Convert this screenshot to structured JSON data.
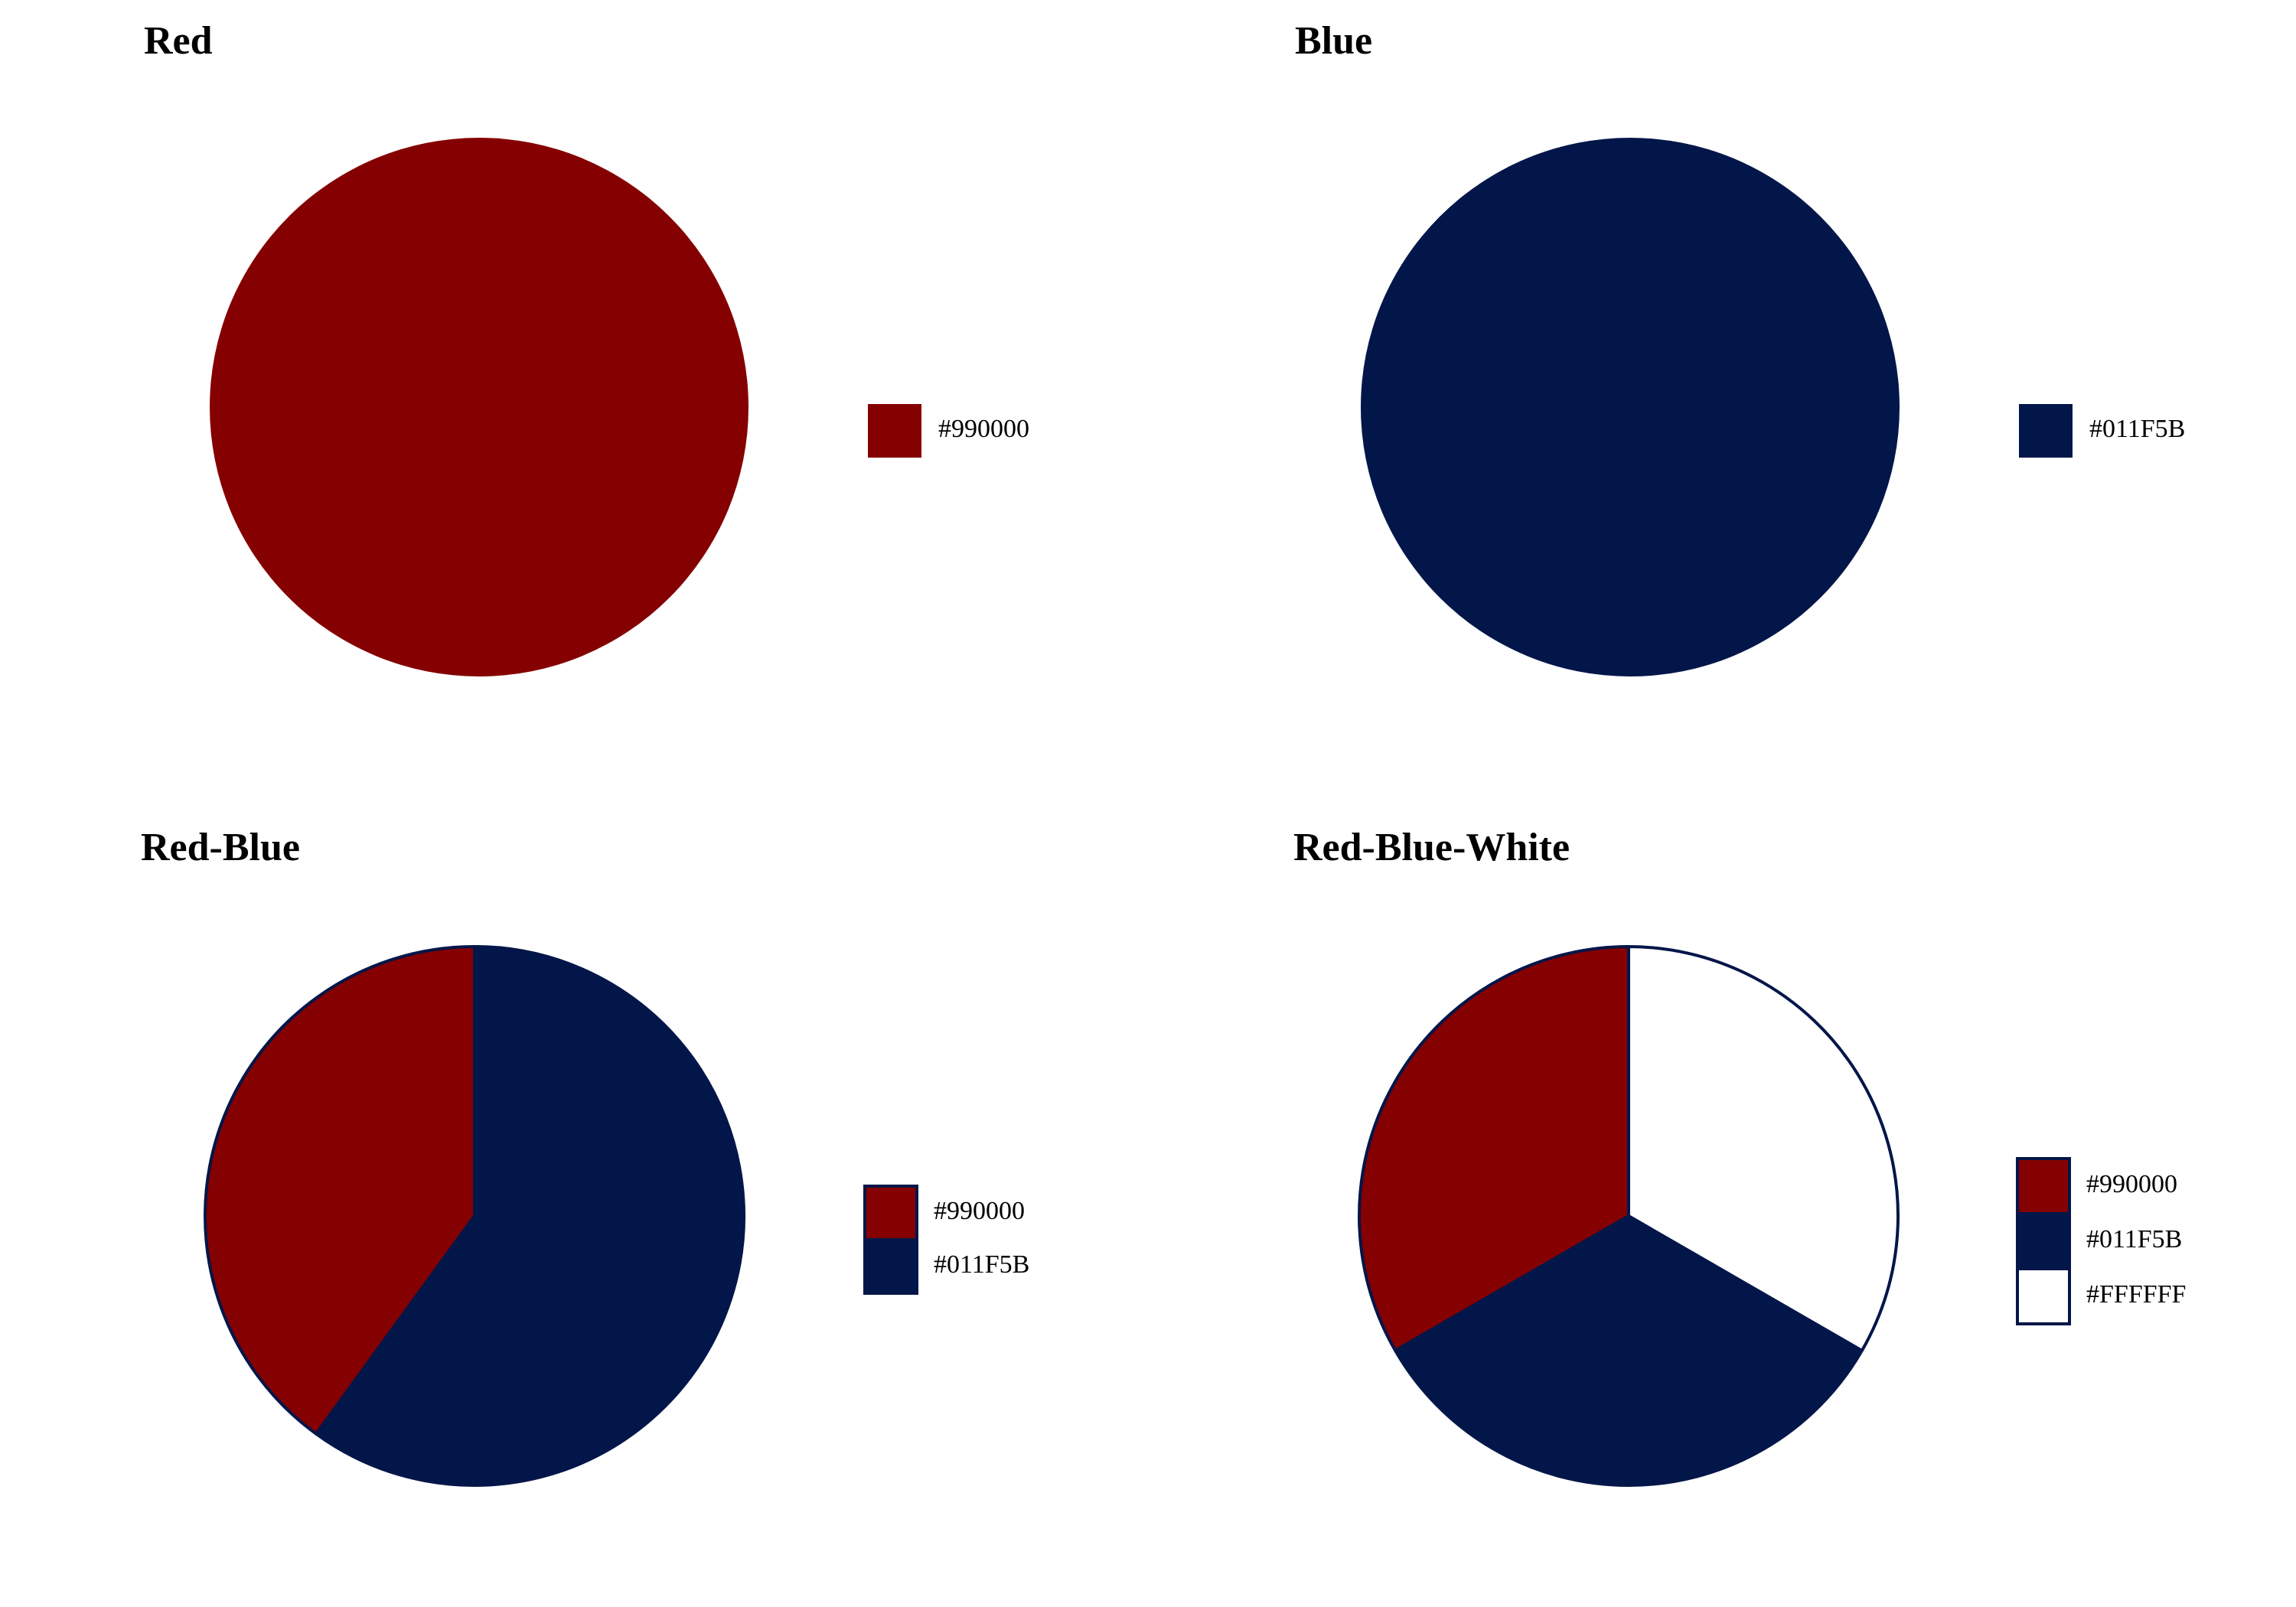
{
  "chart_data": [
    {
      "type": "pie",
      "title": "Red",
      "slices": [
        {
          "label": "#990000",
          "value": 1,
          "color": "#850000"
        }
      ],
      "legend": [
        "#990000"
      ],
      "legend_position": "right",
      "slice_outline": false,
      "legend_key_outline": false
    },
    {
      "type": "pie",
      "title": "Blue",
      "slices": [
        {
          "label": "#011F5B",
          "value": 1,
          "color": "#031649"
        }
      ],
      "legend": [
        "#011F5B"
      ],
      "legend_position": "right",
      "slice_outline": false,
      "legend_key_outline": false
    },
    {
      "type": "pie",
      "title": "Red-Blue",
      "slices": [
        {
          "label": "#990000",
          "value": 0.4,
          "color": "#850000"
        },
        {
          "label": "#011F5B",
          "value": 0.6,
          "color": "#031649"
        }
      ],
      "legend": [
        "#990000",
        "#011F5B"
      ],
      "legend_position": "right",
      "slice_outline": true,
      "outline_color": "#031649",
      "legend_key_outline": true
    },
    {
      "type": "pie",
      "title": "Red-Blue-White",
      "slices": [
        {
          "label": "#990000",
          "value": 0.3333,
          "color": "#850000"
        },
        {
          "label": "#011F5B",
          "value": 0.3334,
          "color": "#031649"
        },
        {
          "label": "#FFFFFF",
          "value": 0.3333,
          "color": "#FFFFFF"
        }
      ],
      "legend": [
        "#990000",
        "#011F5B",
        "#FFFFFF"
      ],
      "legend_position": "right",
      "slice_outline": true,
      "outline_color": "#031649",
      "legend_key_outline": true
    }
  ]
}
